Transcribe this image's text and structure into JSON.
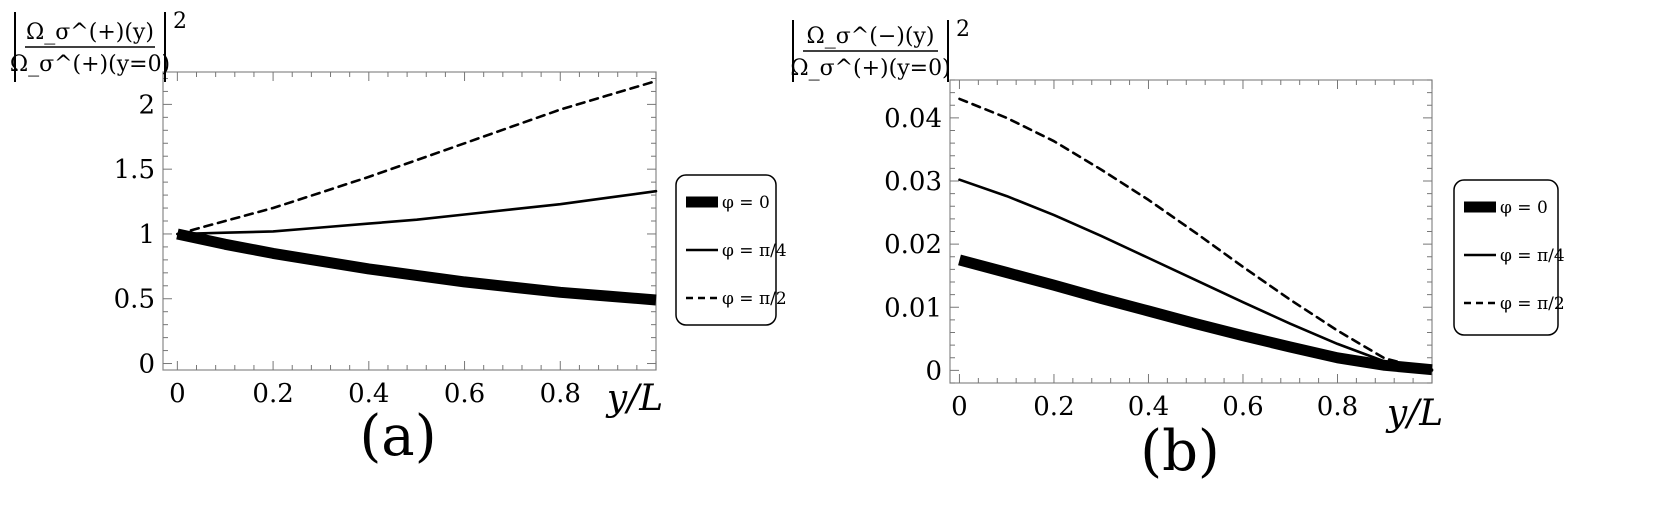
{
  "chart_data": [
    {
      "type": "line",
      "panel_label": "(a)",
      "ylabel": {
        "top": "Ω_σ^(+)(y)",
        "bottom": "Ω_σ^(+)(y=0)",
        "power": "2"
      },
      "xlabel": "y/L",
      "xlim": [
        -0.03,
        1.0
      ],
      "ylim": [
        -0.05,
        2.25
      ],
      "xticks": [
        0,
        0.2,
        0.4,
        0.6,
        0.8
      ],
      "xtick_labels": [
        "0",
        "0.2",
        "0.4",
        "0.6",
        "0.8"
      ],
      "yticks": [
        0,
        0.5,
        1,
        1.5,
        2
      ],
      "ytick_labels": [
        "0",
        "0.5",
        "1",
        "1.5",
        "2"
      ],
      "legend_position": "right",
      "series": [
        {
          "name": "φ = 0",
          "style": "thick",
          "x": [
            0,
            0.1,
            0.2,
            0.3,
            0.4,
            0.5,
            0.6,
            0.7,
            0.8,
            0.9,
            1.0
          ],
          "y": [
            1.0,
            0.92,
            0.85,
            0.79,
            0.73,
            0.68,
            0.63,
            0.59,
            0.55,
            0.52,
            0.49
          ]
        },
        {
          "name": "φ = π/4",
          "style": "solid",
          "x": [
            0,
            0.1,
            0.2,
            0.3,
            0.4,
            0.5,
            0.6,
            0.7,
            0.8,
            0.9,
            1.0
          ],
          "y": [
            1.0,
            1.01,
            1.02,
            1.05,
            1.08,
            1.11,
            1.15,
            1.19,
            1.23,
            1.28,
            1.33
          ]
        },
        {
          "name": "φ = π/2",
          "style": "dashed",
          "x": [
            0,
            0.1,
            0.2,
            0.3,
            0.4,
            0.5,
            0.6,
            0.7,
            0.8,
            0.9,
            1.0
          ],
          "y": [
            1.0,
            1.1,
            1.2,
            1.32,
            1.44,
            1.57,
            1.7,
            1.83,
            1.96,
            2.07,
            2.18
          ]
        }
      ]
    },
    {
      "type": "line",
      "panel_label": "(b)",
      "ylabel": {
        "top": "Ω_σ^(−)(y)",
        "bottom": "Ω_σ^(+)(y=0)",
        "power": "2"
      },
      "xlabel": "y/L",
      "xlim": [
        -0.02,
        1.0
      ],
      "ylim": [
        -0.002,
        0.046
      ],
      "xticks": [
        0,
        0.2,
        0.4,
        0.6,
        0.8
      ],
      "xtick_labels": [
        "0",
        "0.2",
        "0.4",
        "0.6",
        "0.8"
      ],
      "yticks": [
        0,
        0.01,
        0.02,
        0.03,
        0.04
      ],
      "ytick_labels": [
        "0",
        "0.01",
        "0.02",
        "0.03",
        "0.04"
      ],
      "legend_position": "right",
      "series": [
        {
          "name": "φ = 0",
          "style": "thick",
          "x": [
            0,
            0.1,
            0.2,
            0.3,
            0.4,
            0.5,
            0.6,
            0.7,
            0.8,
            0.9,
            1.0
          ],
          "y": [
            0.0175,
            0.0155,
            0.0135,
            0.0114,
            0.0094,
            0.0074,
            0.0055,
            0.0037,
            0.002,
            0.0008,
            0.0001
          ]
        },
        {
          "name": "φ = π/4",
          "style": "solid",
          "x": [
            0,
            0.1,
            0.2,
            0.3,
            0.4,
            0.5,
            0.6,
            0.7,
            0.8,
            0.9,
            1.0
          ],
          "y": [
            0.0302,
            0.0276,
            0.0246,
            0.0213,
            0.0178,
            0.0143,
            0.0108,
            0.0074,
            0.0042,
            0.0014,
            0.0001
          ]
        },
        {
          "name": "φ = π/2",
          "style": "dashed",
          "x": [
            0,
            0.1,
            0.2,
            0.3,
            0.4,
            0.5,
            0.6,
            0.7,
            0.8,
            0.9,
            1.0
          ],
          "y": [
            0.043,
            0.04,
            0.0363,
            0.0318,
            0.027,
            0.0218,
            0.0164,
            0.0112,
            0.0063,
            0.0019,
            0.0
          ]
        }
      ]
    }
  ]
}
